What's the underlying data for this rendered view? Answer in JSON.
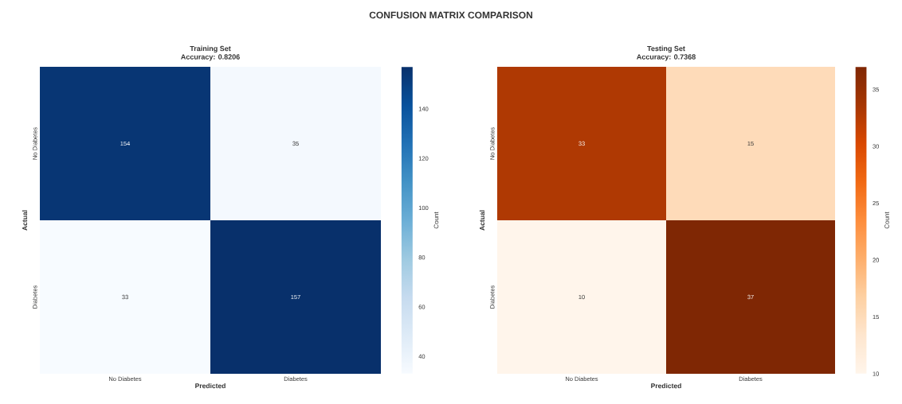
{
  "chart_data": [
    {
      "type": "heatmap",
      "title": "Training Set",
      "subtitle": "Accuracy: 0.8206",
      "xlabel": "Predicted",
      "ylabel": "Actual",
      "clabel": "Count",
      "annotations": [
        "CONFUSION MATRIX COMPARISON"
      ],
      "categories": [
        "No Diabetes",
        "Diabetes"
      ],
      "y_categories": [
        "No Diabetes",
        "Diabetes"
      ],
      "cells": [
        [
          154,
          35
        ],
        [
          33,
          157
        ]
      ],
      "color": "#08306b",
      "clim": [
        33,
        157
      ],
      "cticks": [
        40,
        60,
        80,
        100,
        120,
        140
      ],
      "data_labels": true
    },
    {
      "type": "heatmap",
      "title": "Testing Set",
      "subtitle": "Accuracy: 0.7368",
      "xlabel": "Predicted",
      "ylabel": "Actual",
      "clabel": "Count",
      "categories": [
        "No Diabetes",
        "Diabetes"
      ],
      "y_categories": [
        "No Diabetes",
        "Diabetes"
      ],
      "cells": [
        [
          33,
          15
        ],
        [
          10,
          37
        ]
      ],
      "color": "#7f2704",
      "clim": [
        10,
        37
      ],
      "cticks": [
        10,
        15,
        20,
        25,
        30,
        35
      ],
      "data_labels": true
    }
  ]
}
